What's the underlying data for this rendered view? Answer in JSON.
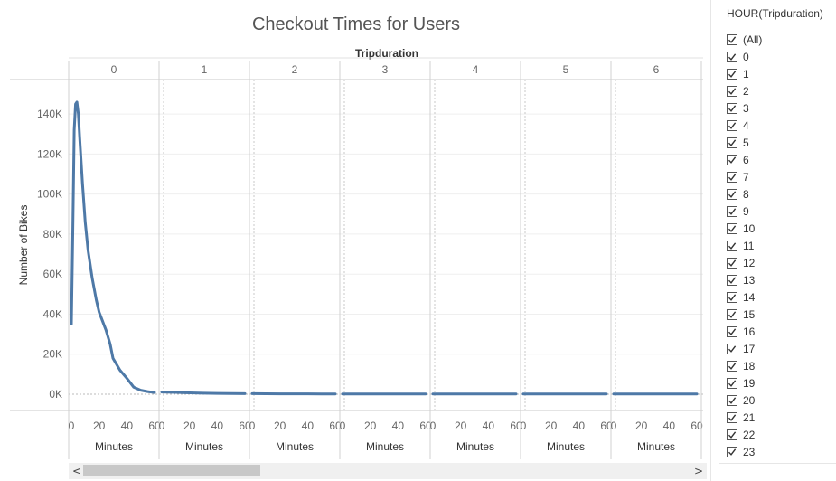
{
  "chart_data": {
    "type": "line",
    "title": "Checkout Times for Users",
    "column_header": "Tripduration",
    "ylabel": "Number of Bikes",
    "xlabel": "Minutes",
    "ylim": [
      0,
      150000
    ],
    "yticks": [
      0,
      20000,
      40000,
      60000,
      80000,
      100000,
      120000,
      140000
    ],
    "ytick_labels": [
      "0K",
      "20K",
      "40K",
      "60K",
      "80K",
      "100K",
      "120K",
      "140K"
    ],
    "xlim": [
      0,
      60
    ],
    "xticks": [
      0,
      20,
      40,
      60
    ],
    "xtick_labels": [
      "0",
      "20",
      "40",
      "60"
    ],
    "color": "#4e79a7",
    "grid": true,
    "panels": [
      {
        "label": "0",
        "x": [
          0,
          1,
          2,
          3,
          4,
          5,
          6,
          8,
          10,
          12,
          15,
          18,
          20,
          25,
          28,
          30,
          35,
          40,
          45,
          50,
          55,
          60
        ],
        "y": [
          35000,
          80000,
          132000,
          145000,
          146000,
          140000,
          128000,
          105000,
          86000,
          72000,
          58000,
          47000,
          41000,
          32000,
          25000,
          18000,
          12000,
          8000,
          3500,
          2000,
          1300,
          800
        ]
      },
      {
        "label": "1",
        "x": [
          0,
          10,
          20,
          30,
          40,
          50,
          60
        ],
        "y": [
          1100,
          900,
          700,
          500,
          400,
          300,
          250
        ]
      },
      {
        "label": "2",
        "x": [
          0,
          10,
          20,
          30,
          40,
          50,
          60
        ],
        "y": [
          250,
          220,
          200,
          180,
          160,
          150,
          140
        ]
      },
      {
        "label": "3",
        "x": [
          0,
          10,
          20,
          30,
          40,
          50,
          60
        ],
        "y": [
          150,
          140,
          130,
          120,
          110,
          100,
          100
        ]
      },
      {
        "label": "4",
        "x": [
          0,
          10,
          20,
          30,
          40,
          50,
          60
        ],
        "y": [
          120,
          110,
          100,
          100,
          90,
          90,
          80
        ]
      },
      {
        "label": "5",
        "x": [
          0,
          10,
          20,
          30,
          40,
          50,
          60
        ],
        "y": [
          100,
          100,
          90,
          90,
          80,
          80,
          80
        ]
      },
      {
        "label": "6",
        "x": [
          0,
          10,
          20,
          30,
          40,
          50,
          60
        ],
        "y": [
          90,
          90,
          80,
          80,
          70,
          70,
          70
        ]
      }
    ]
  },
  "filter": {
    "title": "HOUR(Tripduration)",
    "items": [
      "(All)",
      "0",
      "1",
      "2",
      "3",
      "4",
      "5",
      "6",
      "7",
      "8",
      "9",
      "10",
      "11",
      "12",
      "13",
      "14",
      "15",
      "16",
      "17",
      "18",
      "19",
      "20",
      "21",
      "22",
      "23"
    ]
  },
  "scrollbar": {
    "left_arrow": "<",
    "right_arrow": ">"
  }
}
